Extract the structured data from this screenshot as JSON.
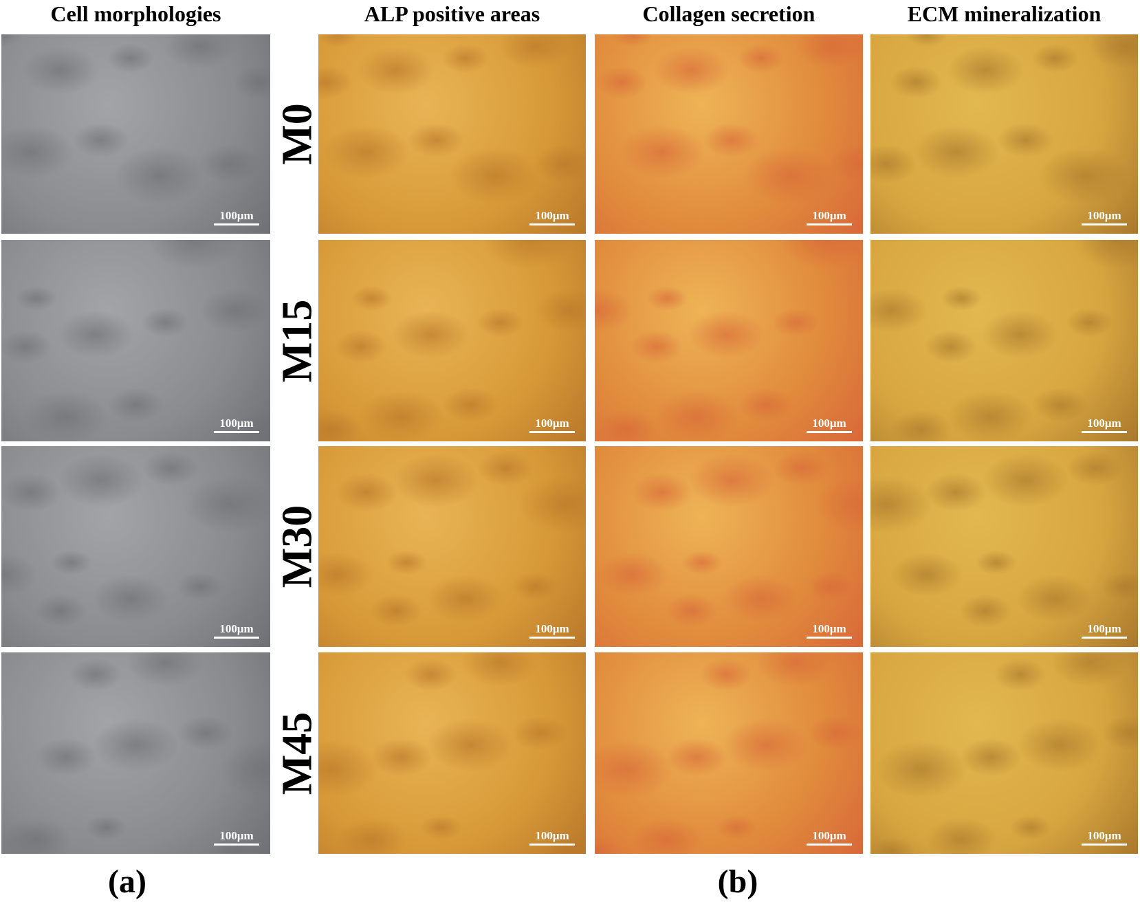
{
  "columns": [
    "Cell morphologies",
    "ALP positive areas",
    "Collagen secretion",
    "ECM mineralization"
  ],
  "rows": [
    {
      "label": "M0",
      "cells": [
        "100μm",
        "100μm",
        "100μm",
        "100μm"
      ]
    },
    {
      "label": "M15",
      "cells": [
        "100μm",
        "100μm",
        "100μm",
        "100μm"
      ]
    },
    {
      "label": "M30",
      "cells": [
        "100μm",
        "100μm",
        "100μm",
        "100μm"
      ]
    },
    {
      "label": "M45",
      "cells": [
        "100μm",
        "100μm",
        "100μm",
        "100μm"
      ]
    }
  ],
  "panels": [
    "(a)",
    "(b)"
  ]
}
